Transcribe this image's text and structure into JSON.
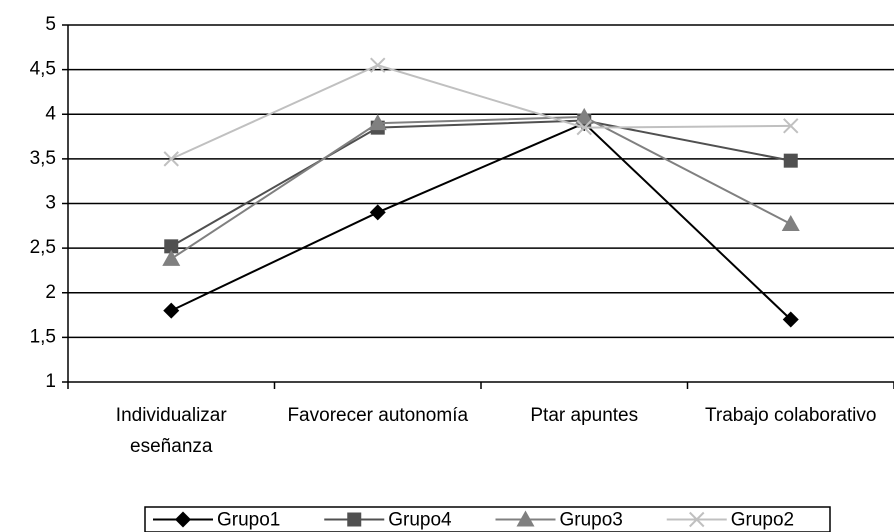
{
  "chart_data": {
    "type": "line",
    "categories": [
      "Individualizar eseñanza",
      "Favorecer autonomía",
      "Ptar apuntes",
      "Trabajo colaborativo"
    ],
    "series": [
      {
        "name": "Grupo1",
        "color": "#000000",
        "marker": "diamond",
        "values": [
          1.8,
          2.9,
          3.9,
          1.7
        ]
      },
      {
        "name": "Grupo4",
        "color": "#505050",
        "marker": "square",
        "values": [
          2.52,
          3.85,
          3.93,
          3.48
        ]
      },
      {
        "name": "Grupo3",
        "color": "#808080",
        "marker": "triangle",
        "values": [
          2.38,
          3.9,
          3.97,
          2.77
        ]
      },
      {
        "name": "Grupo2",
        "color": "#c0c0c0",
        "marker": "x",
        "values": [
          3.5,
          4.55,
          3.85,
          3.87
        ]
      }
    ],
    "ylim": [
      1,
      5
    ],
    "yticks": [
      1,
      {
        "value": 1.5,
        "label": "1,5"
      },
      2,
      {
        "value": 2.5,
        "label": "2,5"
      },
      3,
      {
        "value": 3.5,
        "label": "3,5"
      },
      4,
      {
        "value": 4.5,
        "label": "4,5"
      },
      5
    ],
    "grid": true,
    "legend": "bottom"
  }
}
